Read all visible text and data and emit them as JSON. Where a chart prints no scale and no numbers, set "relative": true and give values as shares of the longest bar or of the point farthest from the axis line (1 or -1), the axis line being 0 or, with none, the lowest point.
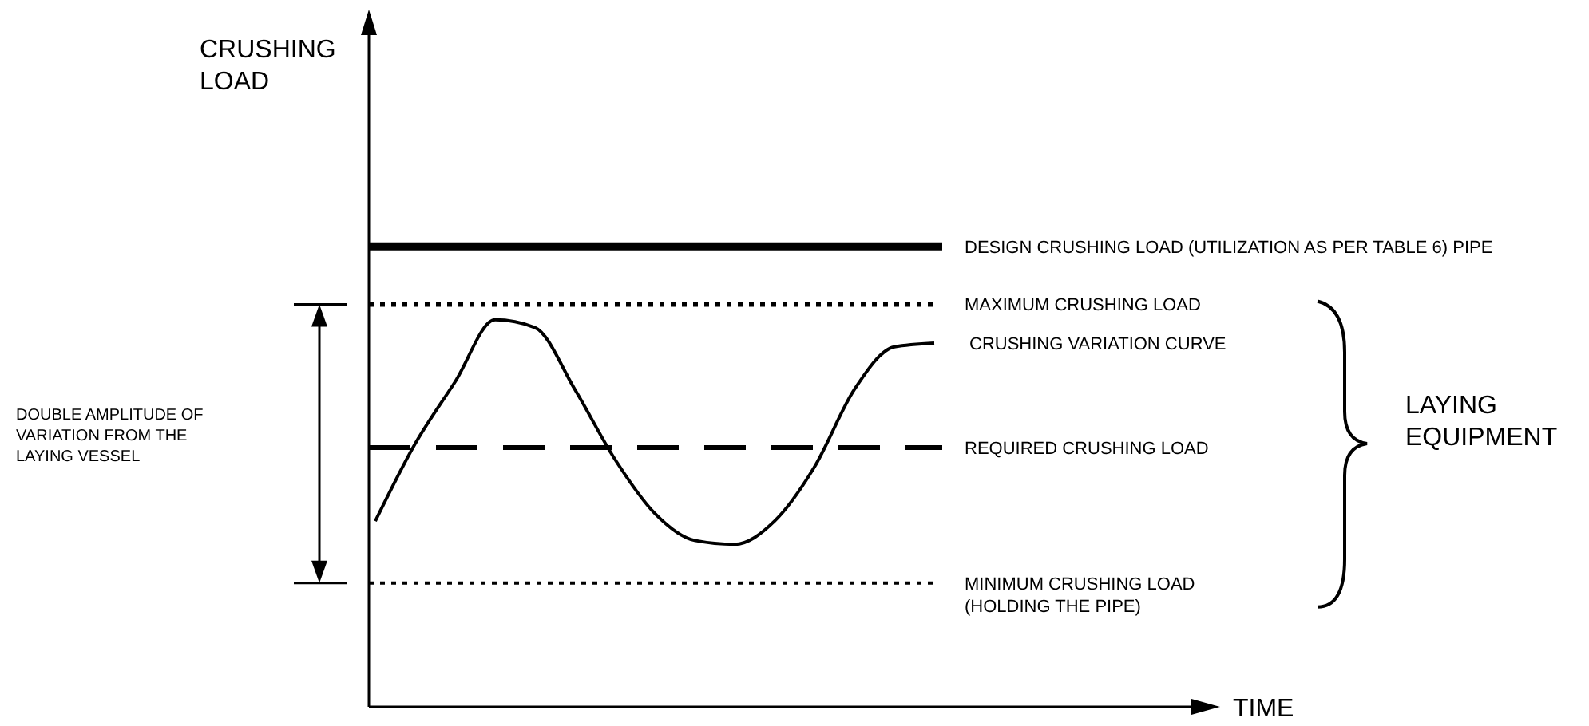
{
  "chart_data": {
    "type": "line",
    "relative": true,
    "categories": [
      null,
      null,
      null,
      null,
      null,
      null,
      null,
      null,
      null,
      null,
      null,
      null,
      null,
      null,
      null
    ],
    "series": [
      {
        "name": "CRUSHING VARIATION CURVE",
        "color": "#000000",
        "values": [
          0.48,
          0.68,
          0.84,
          1,
          0.98,
          0.82,
          0.64,
          0.5,
          0.43,
          0.42,
          0.48,
          0.62,
          0.82,
          0.93,
          0.94
        ]
      }
    ],
    "ref_lines": [
      {
        "axis": "y",
        "value": 1.19,
        "label": "DESIGN CRUSHING LOAD  (UTILIZATION AS PER  TABLE 6)  PIPE",
        "line_style": "solid",
        "color": "#000000"
      },
      {
        "axis": "y",
        "value": 1.04,
        "label": "MAXIMUM CRUSHING LOAD",
        "line_style": "dotted",
        "color": "#000000"
      },
      {
        "axis": "y",
        "value": 0.67,
        "label": "REQUIRED CRUSHING LOAD",
        "line_style": "dashed",
        "color": "#000000"
      },
      {
        "axis": "y",
        "value": 0.32,
        "label": "MINIMUM CRUSHING LOAD\n(HOLDING THE PIPE)",
        "line_style": "dotted",
        "color": "#000000"
      }
    ],
    "annotations": [
      "DOUBLE AMPLITUDE OF\nVARIATION FROM THE\nLAYING VESSEL",
      "LAYING\nEQUIPMENT",
      "CRUSHING\nLOAD",
      "TIME"
    ],
    "legend": false,
    "grid": false,
    "marker": "none",
    "line_style": "solid"
  }
}
